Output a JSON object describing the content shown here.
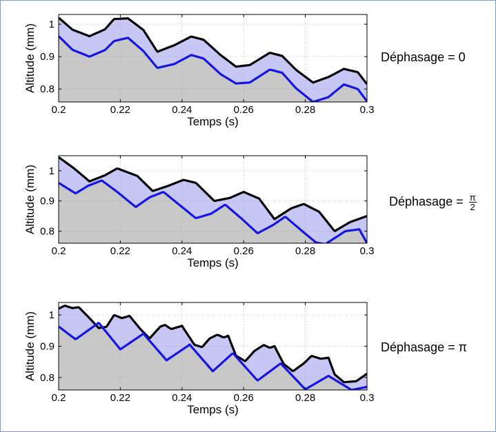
{
  "chart_data": [
    {
      "type": "area",
      "xlabel": "Temps (s)",
      "ylabel": "Altitude (mm)",
      "xlim": [
        0.2,
        0.3
      ],
      "ylim": [
        0.76,
        1.03
      ],
      "xticks": [
        "0.2",
        "0.22",
        "0.24",
        "0.26",
        "0.28",
        "0.3"
      ],
      "yticks": [
        "0.8",
        "0.9",
        "1"
      ],
      "grid": true,
      "phase_label": "Déphasage = 0",
      "colors": {
        "upper": "#000000",
        "lower": "#1414e6",
        "band_fill": "#c7c7f5",
        "ground_fill": "#c8c8c8"
      },
      "series": [
        {
          "x": [
            0.2,
            0.2045,
            0.21,
            0.215,
            0.218,
            0.2225,
            0.2275,
            0.232,
            0.2375,
            0.243,
            0.247,
            0.2525,
            0.2575,
            0.262,
            0.2685,
            0.2725,
            0.277,
            0.2825,
            0.2875,
            0.2925,
            0.297,
            0.3
          ],
          "values": [
            1.02,
            0.983,
            0.963,
            0.984,
            1.016,
            1.018,
            0.982,
            0.915,
            0.935,
            0.962,
            0.952,
            0.905,
            0.869,
            0.874,
            0.912,
            0.902,
            0.859,
            0.82,
            0.837,
            0.862,
            0.852,
            0.815
          ]
        },
        {
          "x": [
            0.2,
            0.2045,
            0.21,
            0.215,
            0.218,
            0.2225,
            0.2275,
            0.232,
            0.2375,
            0.243,
            0.247,
            0.2525,
            0.2575,
            0.262,
            0.2685,
            0.2725,
            0.277,
            0.2825,
            0.2875,
            0.2925,
            0.297,
            0.3
          ],
          "values": [
            0.963,
            0.921,
            0.9,
            0.92,
            0.948,
            0.958,
            0.917,
            0.865,
            0.877,
            0.905,
            0.894,
            0.846,
            0.817,
            0.82,
            0.86,
            0.85,
            0.802,
            0.76,
            0.775,
            0.814,
            0.8,
            0.762
          ]
        }
      ]
    },
    {
      "type": "area",
      "xlabel": "Temps (s)",
      "ylabel": "Altitude (mm)",
      "xlim": [
        0.2,
        0.3
      ],
      "ylim": [
        0.76,
        1.05
      ],
      "xticks": [
        "0.2",
        "0.22",
        "0.24",
        "0.26",
        "0.28",
        "0.3"
      ],
      "yticks": [
        "0.8",
        "0.9",
        "1"
      ],
      "grid": true,
      "phase_label": "Déphasage =",
      "phase_num": "π",
      "phase_den": "2",
      "colors": {
        "upper": "#000000",
        "lower": "#1414e6",
        "band_fill": "#c7c7f5",
        "ground_fill": "#c8c8c8"
      },
      "series": [
        {
          "x": [
            0.2,
            0.205,
            0.21,
            0.215,
            0.219,
            0.2255,
            0.2305,
            0.2355,
            0.2405,
            0.2445,
            0.2505,
            0.2555,
            0.26,
            0.265,
            0.27,
            0.2755,
            0.2795,
            0.2845,
            0.2895,
            0.2945,
            0.3
          ],
          "values": [
            1.045,
            1.008,
            0.965,
            0.985,
            1.008,
            0.983,
            0.933,
            0.95,
            0.97,
            0.96,
            0.9,
            0.91,
            0.93,
            0.908,
            0.84,
            0.876,
            0.89,
            0.864,
            0.8,
            0.83,
            0.85
          ]
        },
        {
          "x": [
            0.2,
            0.2055,
            0.2095,
            0.214,
            0.219,
            0.225,
            0.2295,
            0.234,
            0.24,
            0.2445,
            0.2495,
            0.254,
            0.2595,
            0.2645,
            0.2695,
            0.2735,
            0.279,
            0.2835,
            0.2865,
            0.293,
            0.2975,
            0.3
          ],
          "values": [
            0.96,
            0.925,
            0.95,
            0.968,
            0.93,
            0.88,
            0.912,
            0.93,
            0.88,
            0.843,
            0.858,
            0.888,
            0.84,
            0.793,
            0.82,
            0.848,
            0.8,
            0.762,
            0.757,
            0.8,
            0.806,
            0.76
          ]
        }
      ]
    },
    {
      "type": "area",
      "xlabel": "Temps (s)",
      "ylabel": "Altitude (mm)",
      "xlim": [
        0.2,
        0.3
      ],
      "ylim": [
        0.76,
        1.04
      ],
      "xticks": [
        "0.2",
        "0.22",
        "0.24",
        "0.26",
        "0.28",
        "0.3"
      ],
      "yticks": [
        "0.8",
        "0.9",
        "1"
      ],
      "grid": true,
      "phase_label": "Déphasage = π",
      "colors": {
        "upper": "#000000",
        "lower": "#1414e6",
        "band_fill": "#c7c7f5",
        "ground_fill": "#c8c8c8"
      },
      "series": [
        {
          "x": [
            0.2,
            0.202,
            0.2045,
            0.2065,
            0.21,
            0.213,
            0.2155,
            0.218,
            0.2205,
            0.223,
            0.2265,
            0.2295,
            0.233,
            0.2345,
            0.2365,
            0.24,
            0.244,
            0.2465,
            0.249,
            0.2515,
            0.2535,
            0.255,
            0.2575,
            0.2605,
            0.2635,
            0.2665,
            0.2685,
            0.27,
            0.273,
            0.276,
            0.2795,
            0.282,
            0.285,
            0.2875,
            0.2895,
            0.2925,
            0.2965,
            0.3
          ],
          "values": [
            1.02,
            1.03,
            1.022,
            1.025,
            0.99,
            0.958,
            0.962,
            1.0,
            0.99,
            0.997,
            0.955,
            0.925,
            0.963,
            0.968,
            0.955,
            0.965,
            0.905,
            0.897,
            0.925,
            0.937,
            0.928,
            0.933,
            0.87,
            0.852,
            0.885,
            0.904,
            0.895,
            0.9,
            0.843,
            0.82,
            0.845,
            0.869,
            0.86,
            0.863,
            0.81,
            0.785,
            0.788,
            0.812
          ]
        },
        {
          "x": [
            0.2,
            0.2055,
            0.213,
            0.22,
            0.2275,
            0.235,
            0.2425,
            0.25,
            0.2565,
            0.2645,
            0.272,
            0.28,
            0.2875,
            0.295,
            0.3
          ],
          "values": [
            0.963,
            0.922,
            0.975,
            0.89,
            0.94,
            0.855,
            0.905,
            0.82,
            0.878,
            0.79,
            0.845,
            0.762,
            0.805,
            0.76,
            0.77
          ]
        }
      ]
    }
  ]
}
